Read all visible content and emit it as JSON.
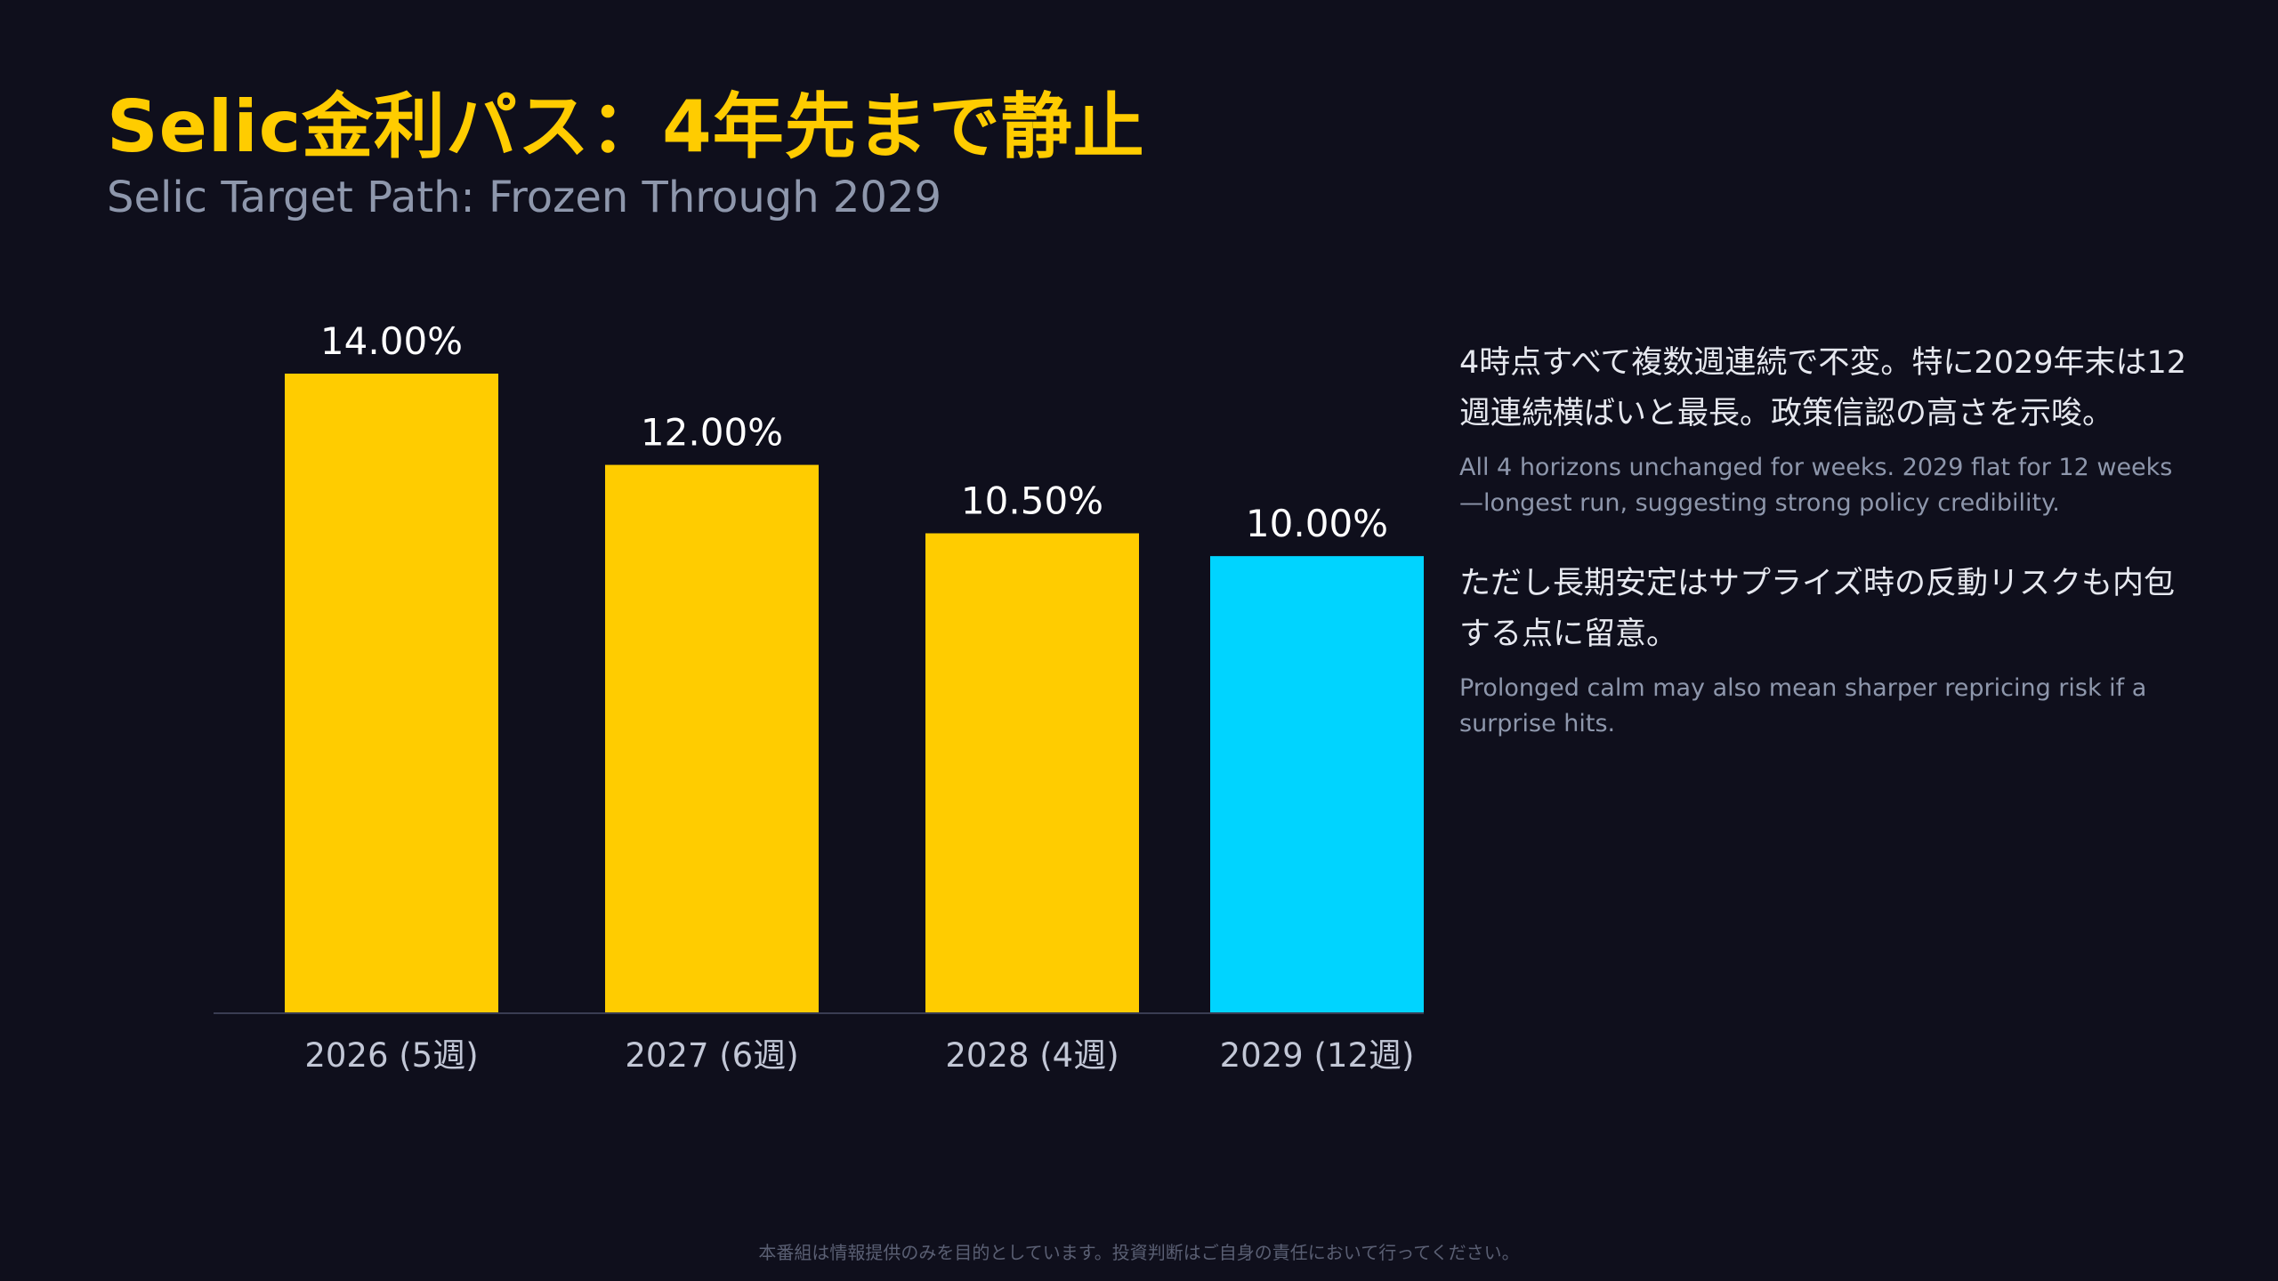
{
  "header": {
    "title": "Selic金利パス：4年先まで静止",
    "subtitle": "Selic Target Path: Frozen Through 2029"
  },
  "notes": {
    "block1_jp": "4時点すべて複数週連続で不変。特に2029年末は12週連続横ばいと最長。政策信認の高さを示唆。",
    "block1_en": "All 4 horizons unchanged for weeks. 2029 flat for 12 weeks—longest run, suggesting strong policy credibility.",
    "block2_jp": "ただし長期安定はサプライズ時の反動リスクも内包する点に留意。",
    "block2_en": "Prolonged calm may also mean sharper repricing risk if a surprise hits."
  },
  "footer": {
    "disclaimer": "本番組は情報提供のみを目的としています。投資判断はご自身の責任において行ってください。"
  },
  "colors": {
    "background": "#0f0f1c",
    "bar_default": "#ffcc00",
    "bar_highlight": "#00d4ff",
    "title": "#ffcc00",
    "muted_text": "#8e97ac"
  },
  "chart_data": {
    "type": "bar",
    "categories": [
      "2026 (5週)",
      "2027 (6週)",
      "2028 (4週)",
      "2029 (12週)"
    ],
    "values": [
      14.0,
      12.0,
      10.5,
      10.0
    ],
    "value_labels": [
      "14.00%",
      "12.00%",
      "10.50%",
      "10.00%"
    ],
    "highlight_index": 3,
    "title": "",
    "xlabel": "",
    "ylabel": "",
    "ylim": [
      0,
      14
    ],
    "grid": false,
    "legend": "none"
  }
}
